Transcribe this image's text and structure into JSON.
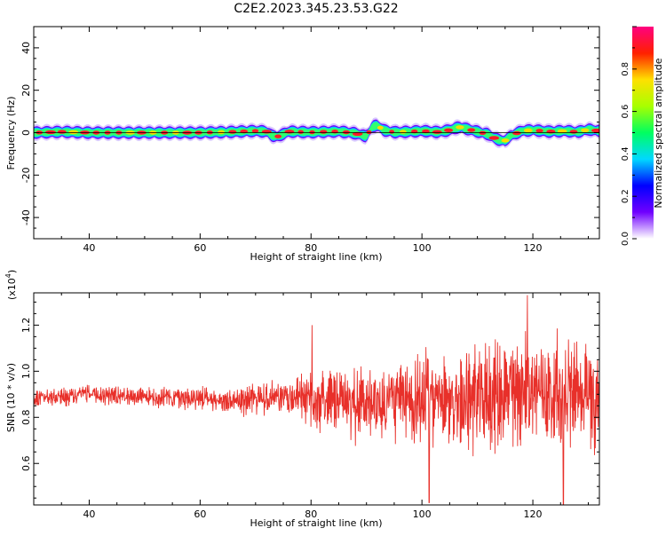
{
  "title": "C2E2.2023.345.23.53.G22",
  "chart_data": [
    {
      "type": "heatmap",
      "xlabel": "Height of straight line (km)",
      "ylabel": "Frequency (Hz)",
      "xlim": [
        30,
        132
      ],
      "ylim": [
        -50,
        50
      ],
      "xticks": [
        40,
        60,
        80,
        100,
        120
      ],
      "yticks": [
        40,
        20,
        0,
        -20,
        -40
      ],
      "ridge": {
        "x": [
          30,
          35,
          40,
          45,
          50,
          55,
          60,
          65,
          70,
          72,
          73,
          74,
          76,
          80,
          85,
          88,
          90,
          91,
          92,
          93,
          95,
          98,
          100,
          103,
          105,
          106,
          107,
          108,
          110,
          112,
          113,
          114,
          115,
          116,
          118,
          120,
          123,
          126,
          128,
          130,
          132
        ],
        "y": [
          0,
          0.4,
          0,
          0,
          0,
          0,
          0,
          0.3,
          0.8,
          0.5,
          -1.5,
          -1.8,
          0.5,
          0.2,
          0.6,
          -0.3,
          -1.8,
          2.8,
          3.5,
          1.2,
          0.2,
          0.5,
          0.8,
          0.3,
          1.2,
          2.2,
          2.6,
          1.8,
          0.5,
          -0.8,
          -2.5,
          -3.5,
          -3.8,
          -1.5,
          0.8,
          1.2,
          0.5,
          0.8,
          0.3,
          1.5,
          0.8
        ]
      },
      "colorbar": {
        "label": "Normalized spectral amplitude",
        "ticks": [
          0.0,
          0.2,
          0.4,
          0.6,
          0.8
        ],
        "range": [
          0,
          1
        ],
        "colors": [
          "#ffffff",
          "#7000ff",
          "#0000ff",
          "#00d8ff",
          "#00ff60",
          "#a8ff00",
          "#ffe000",
          "#ff2000",
          "#ff0080"
        ]
      }
    },
    {
      "type": "line",
      "xlabel": "Height of straight line (km)",
      "ylabel": "SNR (10 * v/v)",
      "multiplier": "(x10",
      "multiplier_exp": "4",
      "multiplier_close": ")",
      "xlim": [
        30,
        132
      ],
      "ylim": [
        0.42,
        1.34
      ],
      "xticks": [
        40,
        60,
        80,
        100,
        120
      ],
      "yticks": [
        1.2,
        1.0,
        0.8,
        0.6
      ],
      "ytick_labels": [
        "1.2",
        "1.0",
        "0.8",
        "0.6"
      ],
      "color": "#e8302a",
      "envelope": {
        "x": [
          30,
          40,
          50,
          60,
          65,
          70,
          75,
          78,
          80,
          85,
          90,
          95,
          100,
          105,
          110,
          115,
          118,
          120,
          125,
          130,
          132
        ],
        "mean": [
          0.88,
          0.9,
          0.89,
          0.88,
          0.87,
          0.88,
          0.88,
          0.9,
          0.88,
          0.86,
          0.86,
          0.87,
          0.88,
          0.87,
          0.88,
          0.9,
          0.9,
          0.92,
          0.9,
          0.9,
          0.9
        ],
        "amp": [
          0.05,
          0.05,
          0.05,
          0.06,
          0.07,
          0.08,
          0.09,
          0.12,
          0.15,
          0.18,
          0.2,
          0.2,
          0.26,
          0.24,
          0.27,
          0.27,
          0.3,
          0.28,
          0.3,
          0.3,
          0.28
        ]
      },
      "extremes": [
        {
          "x": 80.2,
          "y": 1.2
        },
        {
          "x": 101.3,
          "y": 0.43
        },
        {
          "x": 119,
          "y": 1.33
        },
        {
          "x": 125.5,
          "y": 0.42
        }
      ]
    }
  ]
}
